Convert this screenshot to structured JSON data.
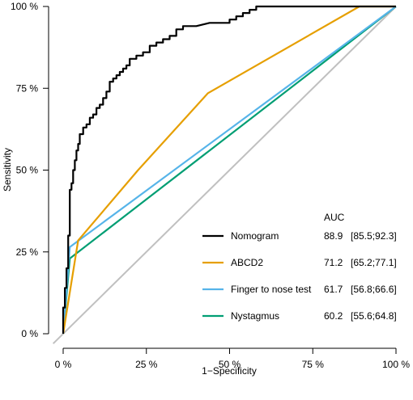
{
  "chart_data": {
    "type": "line",
    "xlabel": "1−Specificity",
    "ylabel": "Sensitivity",
    "xlim": [
      0,
      100
    ],
    "ylim": [
      0,
      100
    ],
    "x_ticks": [
      "0 %",
      "25 %",
      "50 %",
      "75 %",
      "100 %"
    ],
    "y_ticks": [
      "0 %",
      "25 %",
      "50 %",
      "75 %",
      "100 %"
    ],
    "grid": false,
    "legend_position": "bottom-right",
    "legend_header": "AUC",
    "reference_line": {
      "x": [
        -3,
        100
      ],
      "y": [
        -3,
        100
      ],
      "color": "#c0c0c0"
    },
    "series": [
      {
        "name": "Nomogram",
        "color": "#000000",
        "auc": "88.9",
        "ci": "[85.5;92.3]",
        "x": [
          0,
          0,
          0.5,
          0.5,
          1,
          1,
          1.5,
          1.5,
          2,
          2,
          2.5,
          2.5,
          3,
          3,
          3.5,
          3.5,
          4,
          4,
          4.5,
          4.5,
          5,
          5,
          6,
          6,
          7,
          7,
          8,
          8,
          9,
          9,
          10,
          10,
          11,
          11,
          12,
          12,
          13,
          13,
          14,
          14,
          15,
          15,
          16,
          16,
          17,
          17,
          18,
          18,
          19,
          19,
          20,
          20,
          22,
          22,
          24,
          24,
          26,
          26,
          28,
          28,
          30,
          30,
          32,
          32,
          34,
          34,
          36,
          36,
          40,
          44,
          50,
          50,
          52,
          52,
          54,
          54,
          56,
          56,
          58,
          58,
          60,
          70,
          80,
          90,
          100
        ],
        "y": [
          0,
          8,
          8,
          14,
          14,
          20,
          20,
          30,
          30,
          44,
          44,
          46,
          46,
          50,
          50,
          53,
          53,
          56,
          56,
          58,
          58,
          61,
          61,
          63,
          63,
          64,
          64,
          66,
          66,
          67,
          67,
          69,
          69,
          70,
          70,
          72,
          72,
          74,
          74,
          77,
          77,
          78,
          78,
          79,
          79,
          80,
          80,
          81,
          81,
          82,
          82,
          84,
          84,
          85,
          85,
          86,
          86,
          88,
          88,
          89,
          89,
          90,
          90,
          91,
          91,
          93,
          93,
          94,
          94,
          95,
          95,
          96,
          96,
          97,
          97,
          98,
          98,
          99,
          99,
          100,
          100,
          100,
          100,
          100,
          100
        ]
      },
      {
        "name": "ABCD2",
        "color": "#e69f00",
        "auc": "71.2",
        "ci": "[65.2;77.1]",
        "x": [
          0,
          4.5,
          22.5,
          43.5,
          89,
          100
        ],
        "y": [
          0,
          28.5,
          50,
          73.5,
          100,
          100
        ]
      },
      {
        "name": "Finger to nose test",
        "color": "#56b4e9",
        "auc": "61.7",
        "ci": "[56.8;66.6]",
        "x": [
          0,
          2,
          100
        ],
        "y": [
          0,
          26.5,
          100
        ]
      },
      {
        "name": "Nystagmus",
        "color": "#009e73",
        "auc": "60.2",
        "ci": "[55.6;64.8]",
        "x": [
          0,
          2,
          100
        ],
        "y": [
          0,
          23,
          100
        ]
      }
    ]
  }
}
